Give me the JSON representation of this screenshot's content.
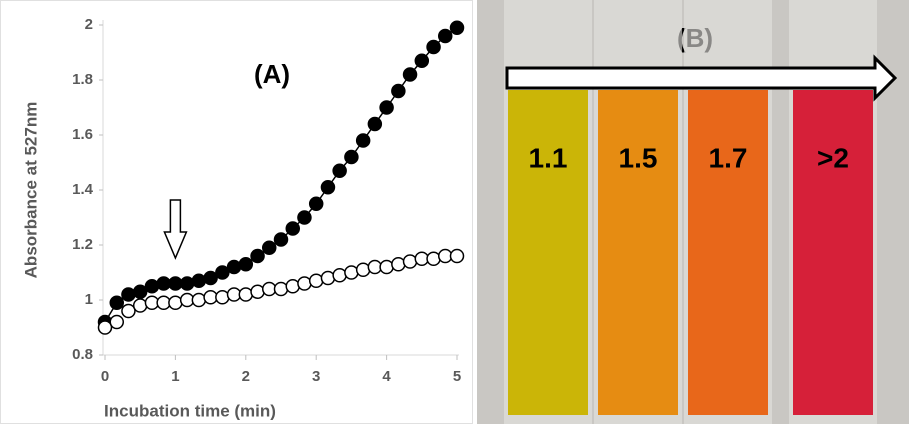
{
  "chart_data": {
    "type": "scatter",
    "xlabel": "Incubation time (min)",
    "ylabel": "Absorbance at 527nm",
    "annotation": "(A)",
    "arrow_x": 1,
    "xlim": [
      0,
      5
    ],
    "ylim": [
      0.8,
      2
    ],
    "xticks": [
      0,
      1,
      2,
      3,
      4,
      5
    ],
    "yticks": [
      0.8,
      1,
      1.2,
      1.4,
      1.6,
      1.8,
      2
    ],
    "x": [
      0,
      0.167,
      0.333,
      0.5,
      0.667,
      0.833,
      1,
      1.167,
      1.333,
      1.5,
      1.667,
      1.833,
      2,
      2.167,
      2.333,
      2.5,
      2.667,
      2.833,
      3,
      3.167,
      3.333,
      3.5,
      3.667,
      3.833,
      4,
      4.167,
      4.333,
      4.5,
      4.667,
      4.833,
      5
    ],
    "series": [
      {
        "color": "#000000",
        "line": true,
        "values": [
          0.92,
          0.99,
          1.02,
          1.03,
          1.05,
          1.06,
          1.06,
          1.06,
          1.07,
          1.08,
          1.1,
          1.12,
          1.13,
          1.16,
          1.19,
          1.22,
          1.26,
          1.3,
          1.35,
          1.41,
          1.47,
          1.52,
          1.58,
          1.64,
          1.7,
          1.76,
          1.82,
          1.87,
          1.92,
          1.96,
          1.99
        ]
      },
      {
        "color": "#ffffff",
        "line": false,
        "values": [
          0.9,
          0.92,
          0.96,
          0.98,
          0.99,
          0.99,
          0.99,
          1,
          1,
          1.01,
          1.01,
          1.02,
          1.02,
          1.03,
          1.04,
          1.04,
          1.05,
          1.06,
          1.07,
          1.08,
          1.09,
          1.1,
          1.11,
          1.12,
          1.12,
          1.13,
          1.14,
          1.15,
          1.15,
          1.16,
          1.16
        ]
      }
    ]
  },
  "photo": {
    "label": "(B)",
    "samples": [
      {
        "label": "1.1",
        "color": "#cbb507"
      },
      {
        "label": "1.5",
        "color": "#e68c12"
      },
      {
        "label": "1.7",
        "color": "#e8671a"
      },
      {
        "label": ">2",
        "color": "#d62039"
      }
    ]
  }
}
